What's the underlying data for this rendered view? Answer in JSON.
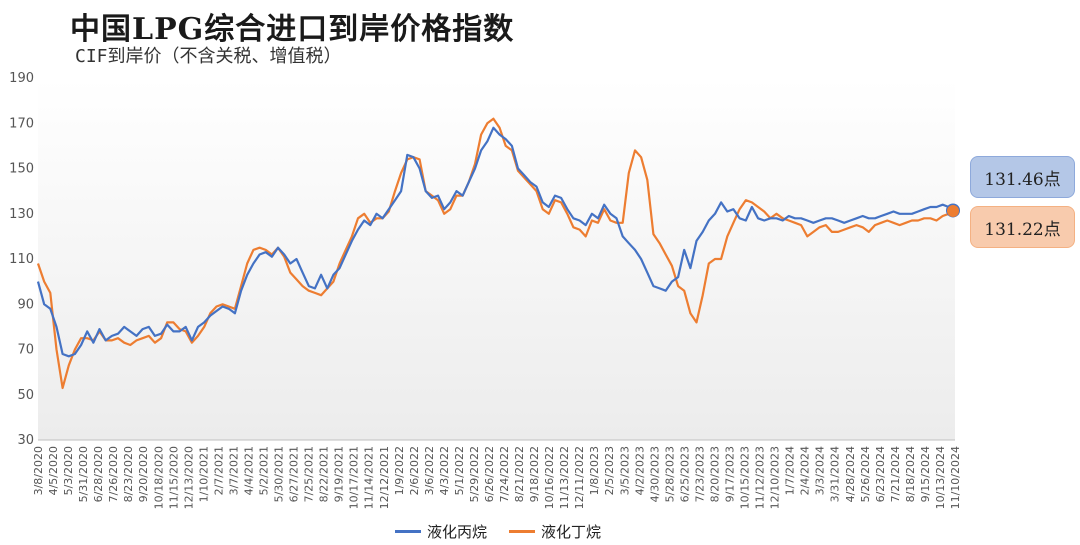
{
  "title": "中国LPG综合进口到岸价格指数",
  "subtitle": "CIF到岸价（不含关税、增值税）",
  "chart_data": {
    "type": "line",
    "ylim": [
      30,
      190
    ],
    "yticks": [
      30,
      50,
      70,
      90,
      110,
      130,
      150,
      170,
      190
    ],
    "xtick_labels": [
      "3/8/2020",
      "4/5/2020",
      "5/3/2020",
      "5/31/2020",
      "6/28/2020",
      "7/26/2020",
      "8/23/2020",
      "9/20/2020",
      "10/18/2020",
      "11/15/2020",
      "12/13/2020",
      "1/10/2021",
      "2/7/2021",
      "3/7/2021",
      "4/4/2021",
      "5/2/2021",
      "5/30/2021",
      "6/27/2021",
      "7/25/2021",
      "8/22/2021",
      "9/19/2021",
      "10/17/2021",
      "11/14/2021",
      "12/12/2021",
      "1/9/2022",
      "2/6/2022",
      "3/6/2022",
      "4/3/2022",
      "5/1/2022",
      "5/29/2022",
      "6/26/2022",
      "7/24/2022",
      "8/21/2022",
      "9/18/2022",
      "10/16/2022",
      "11/13/2022",
      "12/11/2022",
      "1/8/2023",
      "2/5/2023",
      "3/5/2023",
      "4/2/2023",
      "4/30/2023",
      "5/28/2023",
      "6/25/2023",
      "7/23/2023",
      "8/20/2023",
      "9/17/2023",
      "10/15/2023",
      "11/12/2023",
      "12/10/2023",
      "1/7/2024",
      "2/4/2024",
      "3/3/2024",
      "3/31/2024",
      "4/28/2024",
      "5/26/2024",
      "6/23/2024",
      "7/21/2024",
      "8/18/2024",
      "9/15/2024",
      "10/13/2024",
      "11/10/2024"
    ],
    "series": [
      {
        "name": "液化丙烷",
        "color": "#4472c4",
        "end_label": "131.46点",
        "values": [
          100,
          90,
          88,
          80,
          68,
          67,
          68,
          72,
          78,
          73,
          79,
          74,
          76,
          77,
          80,
          78,
          76,
          79,
          80,
          76,
          77,
          81,
          78,
          78,
          80,
          74,
          80,
          82,
          85,
          87,
          89,
          88,
          86,
          96,
          103,
          108,
          112,
          113,
          111,
          115,
          112,
          108,
          110,
          104,
          98,
          97,
          103,
          97,
          103,
          106,
          112,
          118,
          123,
          127,
          125,
          130,
          128,
          132,
          136,
          140,
          156,
          155,
          150,
          140,
          137,
          138,
          132,
          135,
          140,
          138,
          144,
          150,
          158,
          162,
          168,
          165,
          163,
          160,
          150,
          147,
          144,
          142,
          135,
          133,
          138,
          137,
          132,
          128,
          127,
          125,
          130,
          128,
          134,
          130,
          128,
          120,
          117,
          114,
          110,
          104,
          98,
          97,
          96,
          100,
          102,
          114,
          106,
          118,
          122,
          127,
          130,
          135,
          131,
          132,
          128,
          127,
          133,
          128,
          127,
          128,
          128,
          127,
          129,
          128,
          128,
          127,
          126,
          127,
          128,
          128,
          127,
          126,
          127,
          128,
          129,
          128,
          128,
          129,
          130,
          131,
          130,
          130,
          130,
          131,
          132,
          133,
          133,
          134,
          133,
          131.46
        ]
      },
      {
        "name": "液化丁烷",
        "color": "#ed7d31",
        "end_label": "131.22点",
        "values": [
          108,
          100,
          95,
          70,
          53,
          63,
          70,
          75,
          75,
          74,
          78,
          74,
          74,
          75,
          73,
          72,
          74,
          75,
          76,
          73,
          75,
          82,
          82,
          79,
          78,
          73,
          76,
          80,
          86,
          89,
          90,
          89,
          88,
          98,
          108,
          114,
          115,
          114,
          112,
          115,
          111,
          104,
          101,
          98,
          96,
          95,
          94,
          97,
          100,
          108,
          114,
          120,
          128,
          130,
          126,
          128,
          128,
          131,
          140,
          148,
          154,
          155,
          154,
          140,
          138,
          136,
          130,
          132,
          138,
          138,
          144,
          152,
          165,
          170,
          172,
          168,
          160,
          158,
          149,
          146,
          143,
          140,
          132,
          130,
          136,
          135,
          130,
          124,
          123,
          120,
          127,
          126,
          132,
          127,
          126,
          126,
          148,
          158,
          155,
          145,
          121,
          117,
          112,
          107,
          98,
          96,
          86,
          82,
          94,
          108,
          110,
          110,
          120,
          126,
          132,
          136,
          135,
          133,
          131,
          128,
          130,
          128,
          127,
          126,
          125,
          120,
          122,
          124,
          125,
          122,
          122,
          123,
          124,
          125,
          124,
          122,
          125,
          126,
          127,
          126,
          125,
          126,
          127,
          127,
          128,
          128,
          127,
          129,
          130,
          131.22
        ]
      }
    ]
  }
}
